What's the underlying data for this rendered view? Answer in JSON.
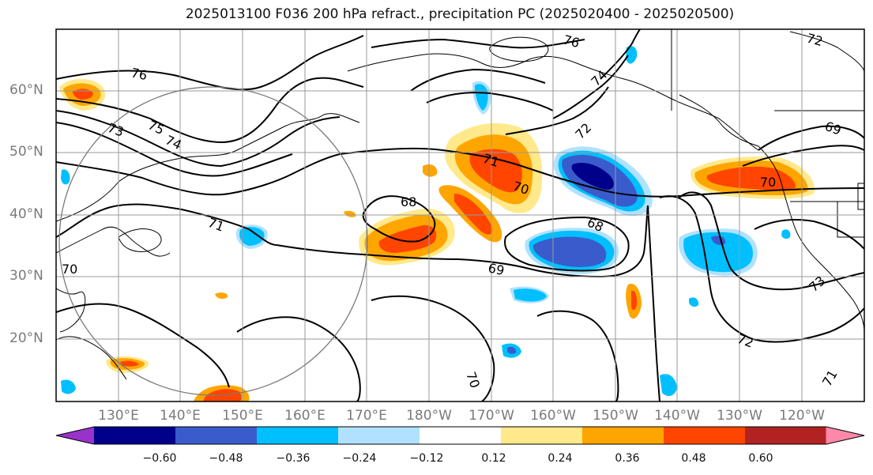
{
  "title": "2025013100 F036 200 hPa refract., precipitation PC (2025020400 - 2025020500)",
  "lat_labels": [
    "60°N",
    "50°N",
    "40°N",
    "30°N",
    "20°N"
  ],
  "lon_labels": [
    "130°E",
    "140°E",
    "150°E",
    "160°E",
    "170°E",
    "180°W",
    "170°W",
    "160°W",
    "150°W",
    "140°W",
    "130°W",
    "120°W"
  ],
  "contour_labels": [
    "76",
    "76",
    "75",
    "74",
    "73",
    "74",
    "72",
    "69",
    "71",
    "70",
    "70",
    "68",
    "68",
    "69",
    "71",
    "70",
    "70",
    "72",
    "73",
    "71",
    "72"
  ],
  "colorbar": {
    "colors": [
      "#9932CC",
      "#00008B",
      "#3A5BCB",
      "#00BFFF",
      "#B0E2FF",
      "#FFFFFF",
      "#FFE98A",
      "#FFA500",
      "#FF4500",
      "#B22222",
      "#FF88AA"
    ],
    "tick_labels": [
      "−0.60",
      "−0.48",
      "−0.36",
      "−0.24",
      "−0.12",
      "0.12",
      "0.24",
      "0.36",
      "0.48",
      "0.60"
    ]
  },
  "colors": {
    "positive_low": "#FFE98A",
    "positive_mid": "#FFA500",
    "positive_high": "#FF4500",
    "negative_low": "#B0E2FF",
    "negative_mid": "#00BFFF",
    "negative_high": "#3A5BCB",
    "negative_max": "#00008B",
    "contour": "#000000",
    "grid": "#9a9a9a"
  }
}
